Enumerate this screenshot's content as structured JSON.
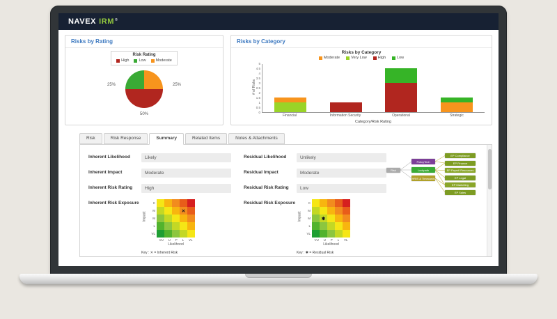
{
  "header": {
    "brand": "NAVEX",
    "product": "IRM",
    "trademark": "®"
  },
  "panels": {
    "pie_header": "Risks by Rating",
    "bar_header": "Risks by Category"
  },
  "chart_data": [
    {
      "type": "pie",
      "title": "Risks by Rating",
      "legend_title": "Risk Rating",
      "legend": [
        {
          "label": "High",
          "color": "#b1261f"
        },
        {
          "label": "Low",
          "color": "#3aaa35"
        },
        {
          "label": "Moderate",
          "color": "#f7941d"
        }
      ],
      "slices": [
        {
          "label": "Moderate",
          "value": 25,
          "color": "#f7941d"
        },
        {
          "label": "High",
          "value": 50,
          "color": "#b1261f"
        },
        {
          "label": "Low",
          "value": 25,
          "color": "#3aaa35"
        }
      ],
      "labels": {
        "left": "25%",
        "right": "25%",
        "bottom": "50%"
      }
    },
    {
      "type": "stacked-bar",
      "title": "Risks by Category",
      "xlabel": "Category/Risk Rating",
      "ylabel": "# of Risks",
      "ylim": [
        0,
        5
      ],
      "yticks": [
        0,
        0.5,
        1,
        1.5,
        2,
        2.5,
        3,
        3.5,
        4,
        4.5,
        5
      ],
      "categories": [
        "Financial",
        "Information Security",
        "Operational",
        "Strategic"
      ],
      "legend": [
        {
          "label": "Moderate",
          "color": "#f7941d"
        },
        {
          "label": "Very Low",
          "color": "#9ad427"
        },
        {
          "label": "High",
          "color": "#b1261f"
        },
        {
          "label": "Low",
          "color": "#36b427"
        }
      ],
      "bars": [
        {
          "category": "Financial",
          "segments": [
            {
              "label": "Very Low",
              "value": 1,
              "color": "#9ad427"
            },
            {
              "label": "Moderate",
              "value": 0.5,
              "color": "#f7941d"
            }
          ]
        },
        {
          "category": "Information Security",
          "segments": [
            {
              "label": "High",
              "value": 1,
              "color": "#b1261f"
            }
          ]
        },
        {
          "category": "Operational",
          "segments": [
            {
              "label": "High",
              "value": 3,
              "color": "#b1261f"
            },
            {
              "label": "Low",
              "value": 1.5,
              "color": "#36b427"
            }
          ]
        },
        {
          "category": "Strategic",
          "segments": [
            {
              "label": "Moderate",
              "value": 1,
              "color": "#f7941d"
            },
            {
              "label": "Low",
              "value": 0.5,
              "color": "#36b427"
            }
          ]
        }
      ]
    }
  ],
  "tabs": {
    "items": [
      "Risk",
      "Risk Response",
      "Summary",
      "Related Items",
      "Notes & Attachments"
    ],
    "active": "Summary",
    "active_index": 2
  },
  "summary": {
    "left": {
      "fields": [
        {
          "label": "Inherent Likelihood",
          "value": "Likely"
        },
        {
          "label": "Inherent Impact",
          "value": "Moderate"
        },
        {
          "label": "Inherent Risk Rating",
          "value": "High"
        }
      ],
      "exposure": {
        "label": "Inherent Risk Exposure",
        "marker": "✕",
        "marker_row": 1,
        "marker_col": 3,
        "key": "Key :  ✕ = Inherent Risk"
      }
    },
    "right": {
      "fields": [
        {
          "label": "Residual Likelihood",
          "value": "Unlikely"
        },
        {
          "label": "Residual Impact",
          "value": "Moderate"
        },
        {
          "label": "Residual Risk Rating",
          "value": "Low"
        }
      ],
      "exposure": {
        "label": "Residual Risk Exposure",
        "marker": "✱",
        "marker_row": 2,
        "marker_col": 1,
        "key": "Key :  ✱ = Residual Risk"
      }
    }
  },
  "heatmap": {
    "xlabel": "Likelihood",
    "ylabel": "Impact",
    "x_labels": [
      "VU",
      "U",
      "P",
      "L",
      "VL"
    ],
    "y_labels": [
      "C",
      "M",
      "M",
      "L",
      "VL"
    ],
    "palette": [
      "#1e9e33",
      "#52b32d",
      "#8cc63f",
      "#c3d825",
      "#f5e616",
      "#f8b50f",
      "#f28c1e",
      "#e85d1a",
      "#d61f1f"
    ]
  },
  "diagram": {
    "root": {
      "label": "Risk",
      "color": "#ababab"
    },
    "mid": [
      {
        "label": "PolicyTech",
        "color": "#7c3f98"
      },
      {
        "label": "Lockpath",
        "color": "#3aaa35"
      },
      {
        "label": "HRIS & Timecards",
        "color": "#b0a12a"
      }
    ],
    "right": [
      {
        "label": "EP Compliance",
        "color": "#7d9c23"
      },
      {
        "label": "EP Finance",
        "color": "#7d9c23"
      },
      {
        "label": "EP Payroll Resources",
        "color": "#8aa629"
      },
      {
        "label": "EP Legal",
        "color": "#7d9c23"
      },
      {
        "label": "EP Marketing",
        "color": "#8aa629"
      },
      {
        "label": "EP Sales",
        "color": "#7d9c23"
      }
    ],
    "links": {
      "root_to_mid": [
        0,
        1,
        2
      ],
      "mid_to_right": [
        [
          0,
          0
        ],
        [
          0,
          1
        ],
        [
          1,
          1
        ],
        [
          1,
          2
        ],
        [
          1,
          3
        ],
        [
          1,
          4
        ],
        [
          2,
          4
        ],
        [
          2,
          5
        ]
      ],
      "root_link_color": "#bdbdbd",
      "link_color": "#c9b94e"
    }
  }
}
